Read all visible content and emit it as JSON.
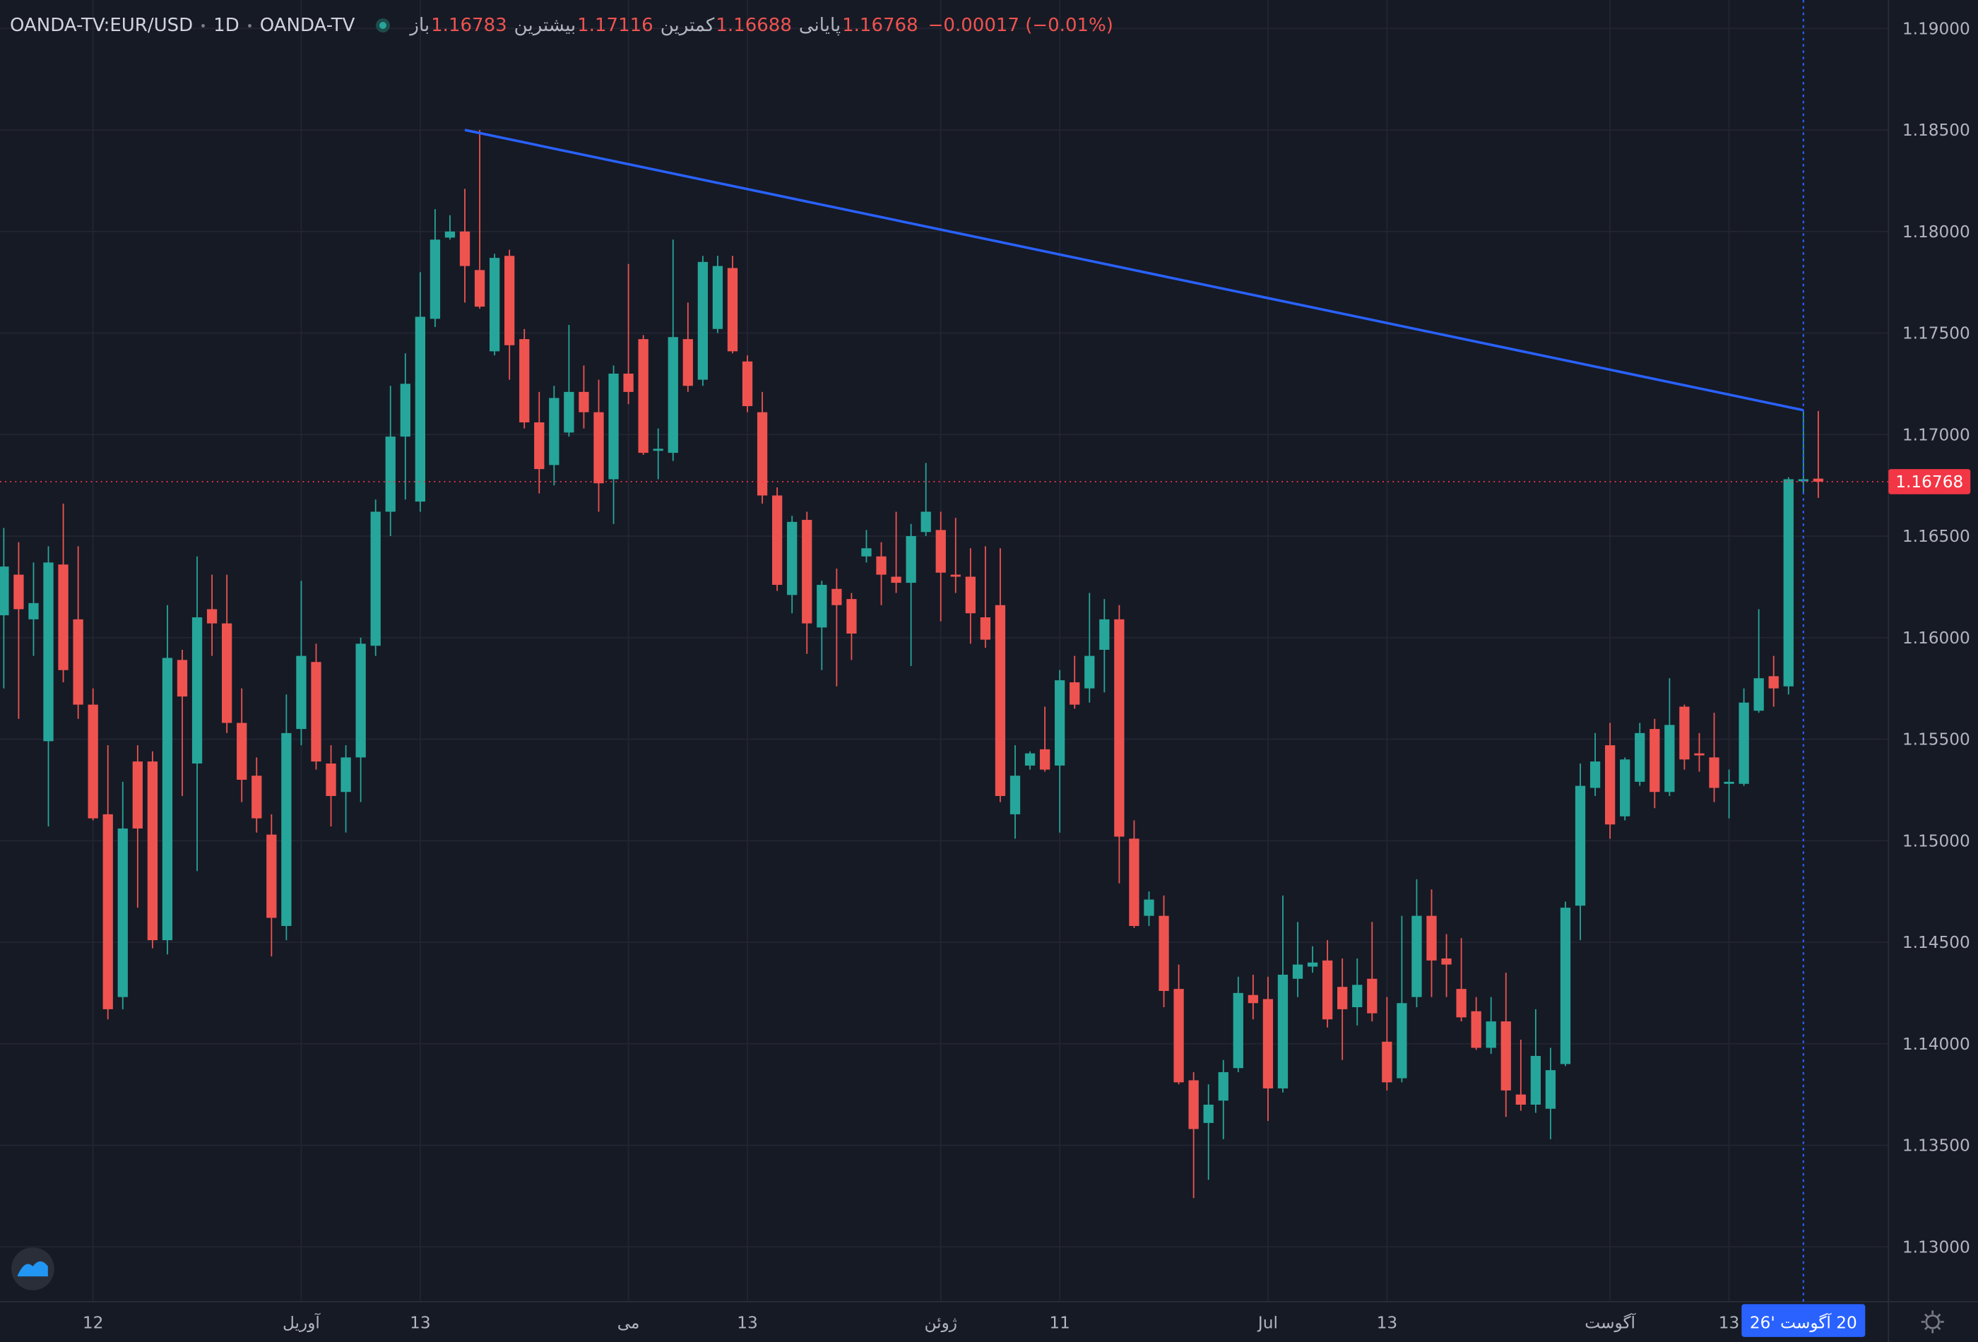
{
  "chart_data": {
    "type": "candlestick",
    "symbol": "OANDA-TV:EUR/USD",
    "interval": "1D",
    "exchange": "OANDA-TV",
    "ohlc_labels": [
      "باز",
      "بیشترین",
      "کمترین",
      "پایانی"
    ],
    "change": "−0.00017 (−0.01%)",
    "categories": [
      null,
      null,
      null,
      null,
      null,
      null,
      "12",
      null,
      null,
      null,
      null,
      null,
      null,
      null,
      null,
      null,
      null,
      null,
      null,
      null,
      "آوریل",
      null,
      null,
      null,
      null,
      null,
      null,
      null,
      "13",
      null,
      null,
      null,
      null,
      null,
      null,
      null,
      null,
      null,
      null,
      null,
      null,
      null,
      "می",
      null,
      null,
      null,
      null,
      null,
      null,
      null,
      "13",
      null,
      null,
      null,
      null,
      null,
      null,
      null,
      null,
      null,
      null,
      null,
      null,
      "ژوئن",
      null,
      null,
      null,
      null,
      null,
      null,
      null,
      "11",
      null,
      null,
      null,
      null,
      null,
      null,
      null,
      null,
      null,
      null,
      null,
      null,
      null,
      "Jul",
      null,
      null,
      null,
      null,
      null,
      null,
      null,
      "13",
      null,
      null,
      null,
      null,
      null,
      null,
      null,
      null,
      null,
      null,
      null,
      null,
      null,
      null,
      "آگوست",
      null,
      null,
      null,
      null,
      null,
      null,
      null,
      "13",
      null,
      null,
      null,
      null,
      null,
      null
    ],
    "open": [
      1.1611,
      1.1631,
      1.1609,
      1.1549,
      1.1636,
      1.1609,
      1.1567,
      1.1513,
      1.1423,
      1.1539,
      1.1539,
      1.1451,
      1.1589,
      1.1538,
      1.1614,
      1.1607,
      1.1558,
      1.1532,
      1.1503,
      1.1458,
      1.1555,
      1.1588,
      1.1538,
      1.1524,
      1.1541,
      1.1596,
      1.1662,
      1.1699,
      1.1667,
      1.1757,
      1.1797,
      1.18,
      1.1781,
      1.1741,
      1.1788,
      1.1747,
      1.1706,
      1.1685,
      1.1701,
      1.1721,
      1.1711,
      1.1678,
      1.173,
      1.1747,
      1.1692,
      1.1691,
      1.1747,
      1.1727,
      1.1752,
      1.1782,
      1.1736,
      1.1711,
      1.167,
      1.1621,
      1.1658,
      1.1605,
      1.1624,
      1.1619,
      1.164,
      1.164,
      1.163,
      1.1627,
      1.1652,
      1.1653,
      1.1631,
      1.163,
      1.161,
      1.1616,
      1.1513,
      1.1537,
      1.1545,
      1.1537,
      1.1578,
      1.1575,
      1.1594,
      1.1609,
      1.1501,
      1.1463,
      1.1463,
      1.1427,
      1.1382,
      1.1361,
      1.1372,
      1.1388,
      1.1424,
      1.1422,
      1.1378,
      1.1432,
      1.1438,
      1.1441,
      1.1428,
      1.1418,
      1.1432,
      1.1401,
      1.1383,
      1.1423,
      1.1463,
      1.1442,
      1.1427,
      1.1416,
      1.1398,
      1.1411,
      1.1375,
      1.137,
      1.1368,
      1.139,
      1.1468,
      1.1526,
      1.1547,
      1.1512,
      1.1529,
      1.1555,
      1.1524,
      1.1566,
      1.1543,
      1.1541,
      1.1528,
      1.1528,
      1.1564,
      1.1581,
      1.1576,
      1.1677,
      1.16783
    ],
    "high": [
      1.1654,
      1.1647,
      1.1637,
      1.1645,
      1.1666,
      1.1645,
      1.1575,
      1.1547,
      1.1529,
      1.1547,
      1.1544,
      1.1616,
      1.1594,
      1.164,
      1.1631,
      1.1631,
      1.1575,
      1.1541,
      1.1513,
      1.1572,
      1.1628,
      1.1597,
      1.1547,
      1.1547,
      1.16,
      1.1668,
      1.1724,
      1.174,
      1.178,
      1.1811,
      1.1808,
      1.1821,
      1.185,
      1.1789,
      1.1791,
      1.1752,
      1.1721,
      1.1724,
      1.1754,
      1.1734,
      1.1727,
      1.1734,
      1.1784,
      1.1749,
      1.1703,
      1.1796,
      1.1765,
      1.1788,
      1.1788,
      1.1788,
      1.1739,
      1.1721,
      1.1674,
      1.166,
      1.1662,
      1.1628,
      1.1634,
      1.1622,
      1.1653,
      1.1647,
      1.1662,
      1.1656,
      1.1686,
      1.1662,
      1.1659,
      1.1644,
      1.1645,
      1.1644,
      1.1547,
      1.1544,
      1.1566,
      1.1584,
      1.1591,
      1.1622,
      1.1619,
      1.1616,
      1.151,
      1.1475,
      1.1473,
      1.1439,
      1.1386,
      1.138,
      1.1392,
      1.1433,
      1.1434,
      1.1433,
      1.1473,
      1.146,
      1.1448,
      1.1451,
      1.1442,
      1.1442,
      1.146,
      1.1423,
      1.1463,
      1.1481,
      1.1476,
      1.1454,
      1.1452,
      1.1423,
      1.1423,
      1.1435,
      1.1402,
      1.1417,
      1.1398,
      1.147,
      1.1538,
      1.1553,
      1.1558,
      1.1541,
      1.1558,
      1.156,
      1.158,
      1.1567,
      1.1553,
      1.1563,
      1.1535,
      1.1575,
      1.1614,
      1.1591,
      1.1679,
      1.1712,
      1.17116
    ],
    "low": [
      1.1575,
      1.156,
      1.1591,
      1.1507,
      1.1578,
      1.156,
      1.151,
      1.1412,
      1.1417,
      1.1467,
      1.1447,
      1.1444,
      1.1522,
      1.1485,
      1.1591,
      1.1553,
      1.1519,
      1.1504,
      1.1443,
      1.1451,
      1.1547,
      1.1535,
      1.1507,
      1.1504,
      1.1519,
      1.1591,
      1.165,
      1.1668,
      1.1662,
      1.1753,
      1.1796,
      1.1765,
      1.1762,
      1.1739,
      1.1727,
      1.1703,
      1.1671,
      1.1675,
      1.1699,
      1.1703,
      1.1662,
      1.1656,
      1.1715,
      1.169,
      1.1678,
      1.1687,
      1.1721,
      1.1724,
      1.175,
      1.174,
      1.1711,
      1.1666,
      1.1623,
      1.1612,
      1.1592,
      1.1584,
      1.1576,
      1.1589,
      1.1637,
      1.1616,
      1.1622,
      1.1586,
      1.165,
      1.1608,
      1.1622,
      1.1597,
      1.1595,
      1.1519,
      1.1501,
      1.1535,
      1.1534,
      1.1504,
      1.1565,
      1.1568,
      1.1573,
      1.1479,
      1.1457,
      1.1458,
      1.1418,
      1.138,
      1.1324,
      1.1333,
      1.1353,
      1.1386,
      1.1412,
      1.1362,
      1.1376,
      1.1423,
      1.1435,
      1.1408,
      1.1392,
      1.1409,
      1.1411,
      1.1377,
      1.1381,
      1.1418,
      1.1423,
      1.1423,
      1.1411,
      1.1397,
      1.1395,
      1.1364,
      1.1367,
      1.1366,
      1.1353,
      1.1389,
      1.1451,
      1.1522,
      1.1501,
      1.151,
      1.1527,
      1.1516,
      1.1522,
      1.1535,
      1.1534,
      1.1519,
      1.1511,
      1.1527,
      1.1563,
      1.1566,
      1.1572,
      1.1671,
      1.16688
    ],
    "close": [
      1.1635,
      1.1614,
      1.1617,
      1.1637,
      1.1584,
      1.1567,
      1.1511,
      1.1417,
      1.1506,
      1.1506,
      1.1451,
      1.159,
      1.1571,
      1.161,
      1.1607,
      1.1558,
      1.153,
      1.1511,
      1.1462,
      1.1553,
      1.1591,
      1.1539,
      1.1522,
      1.1541,
      1.1597,
      1.1662,
      1.1699,
      1.1725,
      1.1758,
      1.1796,
      1.18,
      1.1783,
      1.1763,
      1.1787,
      1.1744,
      1.1706,
      1.1683,
      1.1718,
      1.1721,
      1.1711,
      1.1676,
      1.173,
      1.1721,
      1.1691,
      1.1693,
      1.1748,
      1.1724,
      1.1785,
      1.1783,
      1.1741,
      1.1714,
      1.167,
      1.1626,
      1.1657,
      1.1607,
      1.1626,
      1.1616,
      1.1602,
      1.1644,
      1.1631,
      1.1627,
      1.165,
      1.1662,
      1.1632,
      1.163,
      1.1612,
      1.1599,
      1.1522,
      1.1532,
      1.1543,
      1.1535,
      1.1579,
      1.1567,
      1.1591,
      1.1609,
      1.1502,
      1.1458,
      1.1471,
      1.1426,
      1.1381,
      1.1358,
      1.137,
      1.1386,
      1.1425,
      1.142,
      1.1378,
      1.1434,
      1.1439,
      1.144,
      1.1412,
      1.1417,
      1.1429,
      1.1415,
      1.1381,
      1.142,
      1.1463,
      1.1441,
      1.1439,
      1.1413,
      1.1398,
      1.1411,
      1.1377,
      1.137,
      1.1394,
      1.1387,
      1.1467,
      1.1527,
      1.1539,
      1.1508,
      1.154,
      1.1553,
      1.1524,
      1.1557,
      1.154,
      1.1542,
      1.1526,
      1.1529,
      1.1568,
      1.158,
      1.1575,
      1.1678,
      1.1678,
      1.16768
    ],
    "up_color": "#26a69a",
    "down_color": "#ef5350",
    "ylim": [
      1.1273,
      1.1914
    ],
    "yticks": [
      {
        "value": 1.13,
        "label": "1.13000"
      },
      {
        "value": 1.135,
        "label": "1.13500"
      },
      {
        "value": 1.14,
        "label": "1.14000"
      },
      {
        "value": 1.145,
        "label": "1.14500"
      },
      {
        "value": 1.15,
        "label": "1.15000"
      },
      {
        "value": 1.155,
        "label": "1.15500"
      },
      {
        "value": 1.16,
        "label": "1.16000"
      },
      {
        "value": 1.165,
        "label": "1.16500"
      },
      {
        "value": 1.17,
        "label": "1.17000"
      },
      {
        "value": 1.175,
        "label": "1.17500"
      },
      {
        "value": 1.18,
        "label": "1.18000"
      },
      {
        "value": 1.185,
        "label": "1.18500"
      },
      {
        "value": 1.19,
        "label": "1.19000"
      }
    ],
    "grid": true,
    "trendline": {
      "x": [
        31,
        121
      ],
      "y": [
        1.185,
        1.1712
      ],
      "color": "#2962ff"
    },
    "crosshair": {
      "x": 121,
      "label": "20 آگوست '26",
      "color": "#2962ff"
    },
    "last_price_color": "#f23645"
  }
}
